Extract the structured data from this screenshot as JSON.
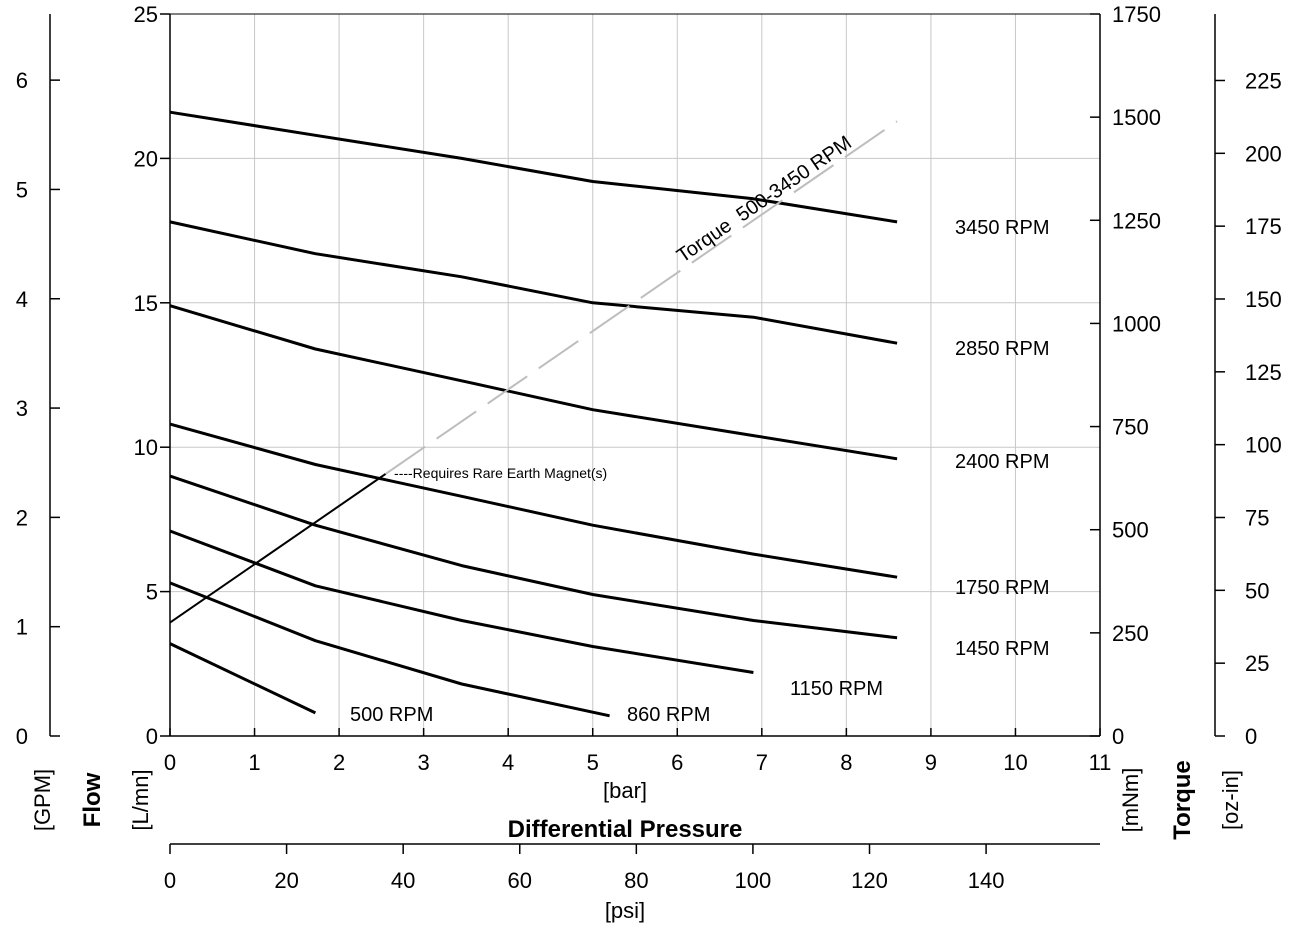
{
  "chart_data": {
    "type": "line",
    "title": "",
    "x_axis": {
      "title": "Differential Pressure",
      "unit_primary": "[bar]",
      "range_bar": [
        0,
        11
      ],
      "ticks_bar": [
        0,
        1,
        2,
        3,
        4,
        5,
        6,
        7,
        8,
        9,
        10,
        11
      ],
      "unit_secondary": "[psi]",
      "ticks_psi": [
        0,
        20,
        40,
        60,
        80,
        100,
        120,
        140
      ]
    },
    "y_left": {
      "title": "Flow",
      "unit_lmn": "[L/mn]",
      "range_lmn": [
        0,
        25
      ],
      "ticks_lmn": [
        0,
        5,
        10,
        15,
        20,
        25
      ],
      "unit_gpm": "[GPM]",
      "ticks_gpm": [
        0,
        1,
        2,
        3,
        4,
        5,
        6
      ]
    },
    "y_right": {
      "title": "Torque",
      "unit_mnm": "[mNm]",
      "range_mnm": [
        0,
        1750
      ],
      "ticks_mnm": [
        0,
        250,
        500,
        750,
        1000,
        1250,
        1500,
        1750
      ],
      "unit_ozin": "[oz-in]",
      "ticks_ozin": [
        0,
        25,
        50,
        75,
        100,
        125,
        150,
        175,
        200,
        225
      ]
    },
    "grid": true,
    "series": [
      {
        "name": "3450 RPM",
        "label": "3450 RPM",
        "x": [
          0,
          1.72,
          3.45,
          5.0,
          6.9,
          8.6
        ],
        "y": [
          21.6,
          20.8,
          20.0,
          19.2,
          18.6,
          17.8
        ]
      },
      {
        "name": "2850 RPM",
        "label": "2850 RPM",
        "x": [
          0,
          1.72,
          3.45,
          5.0,
          6.9,
          8.6
        ],
        "y": [
          17.8,
          16.7,
          15.9,
          15.0,
          14.5,
          13.6
        ]
      },
      {
        "name": "2400 RPM",
        "label": "2400 RPM",
        "x": [
          0,
          1.72,
          3.45,
          5.0,
          6.9,
          8.6
        ],
        "y": [
          14.9,
          13.4,
          12.3,
          11.3,
          10.4,
          9.6
        ]
      },
      {
        "name": "1750 RPM",
        "label": "1750 RPM",
        "x": [
          0,
          1.72,
          3.45,
          5.0,
          6.9,
          8.6
        ],
        "y": [
          10.8,
          9.4,
          8.3,
          7.3,
          6.3,
          5.5
        ]
      },
      {
        "name": "1450 RPM",
        "label": "1450 RPM",
        "x": [
          0,
          1.72,
          3.45,
          5.0,
          6.9,
          8.6
        ],
        "y": [
          9.0,
          7.3,
          5.9,
          4.9,
          4.0,
          3.4
        ]
      },
      {
        "name": "1150 RPM",
        "label": "1150 RPM",
        "x": [
          0,
          1.72,
          3.45,
          5.0,
          6.9
        ],
        "y": [
          7.1,
          5.2,
          4.0,
          3.1,
          2.2
        ]
      },
      {
        "name": "860 RPM",
        "label": "860 RPM",
        "x": [
          0,
          1.72,
          3.45,
          5.2
        ],
        "y": [
          5.3,
          3.3,
          1.8,
          0.7
        ]
      },
      {
        "name": "500 RPM",
        "label": "500 RPM",
        "x": [
          0,
          1.72
        ],
        "y": [
          3.2,
          0.8
        ]
      }
    ],
    "torque_line": {
      "label": "Torque  500-3450 RPM",
      "axis": "right",
      "x": [
        0,
        8.6
      ],
      "y_mnm": [
        275,
        1490
      ],
      "solid_until_x": 2.55
    },
    "annotation": {
      "text": "----Requires Rare Earth Magnet(s)",
      "x": 2.65,
      "y": 9.1
    }
  }
}
